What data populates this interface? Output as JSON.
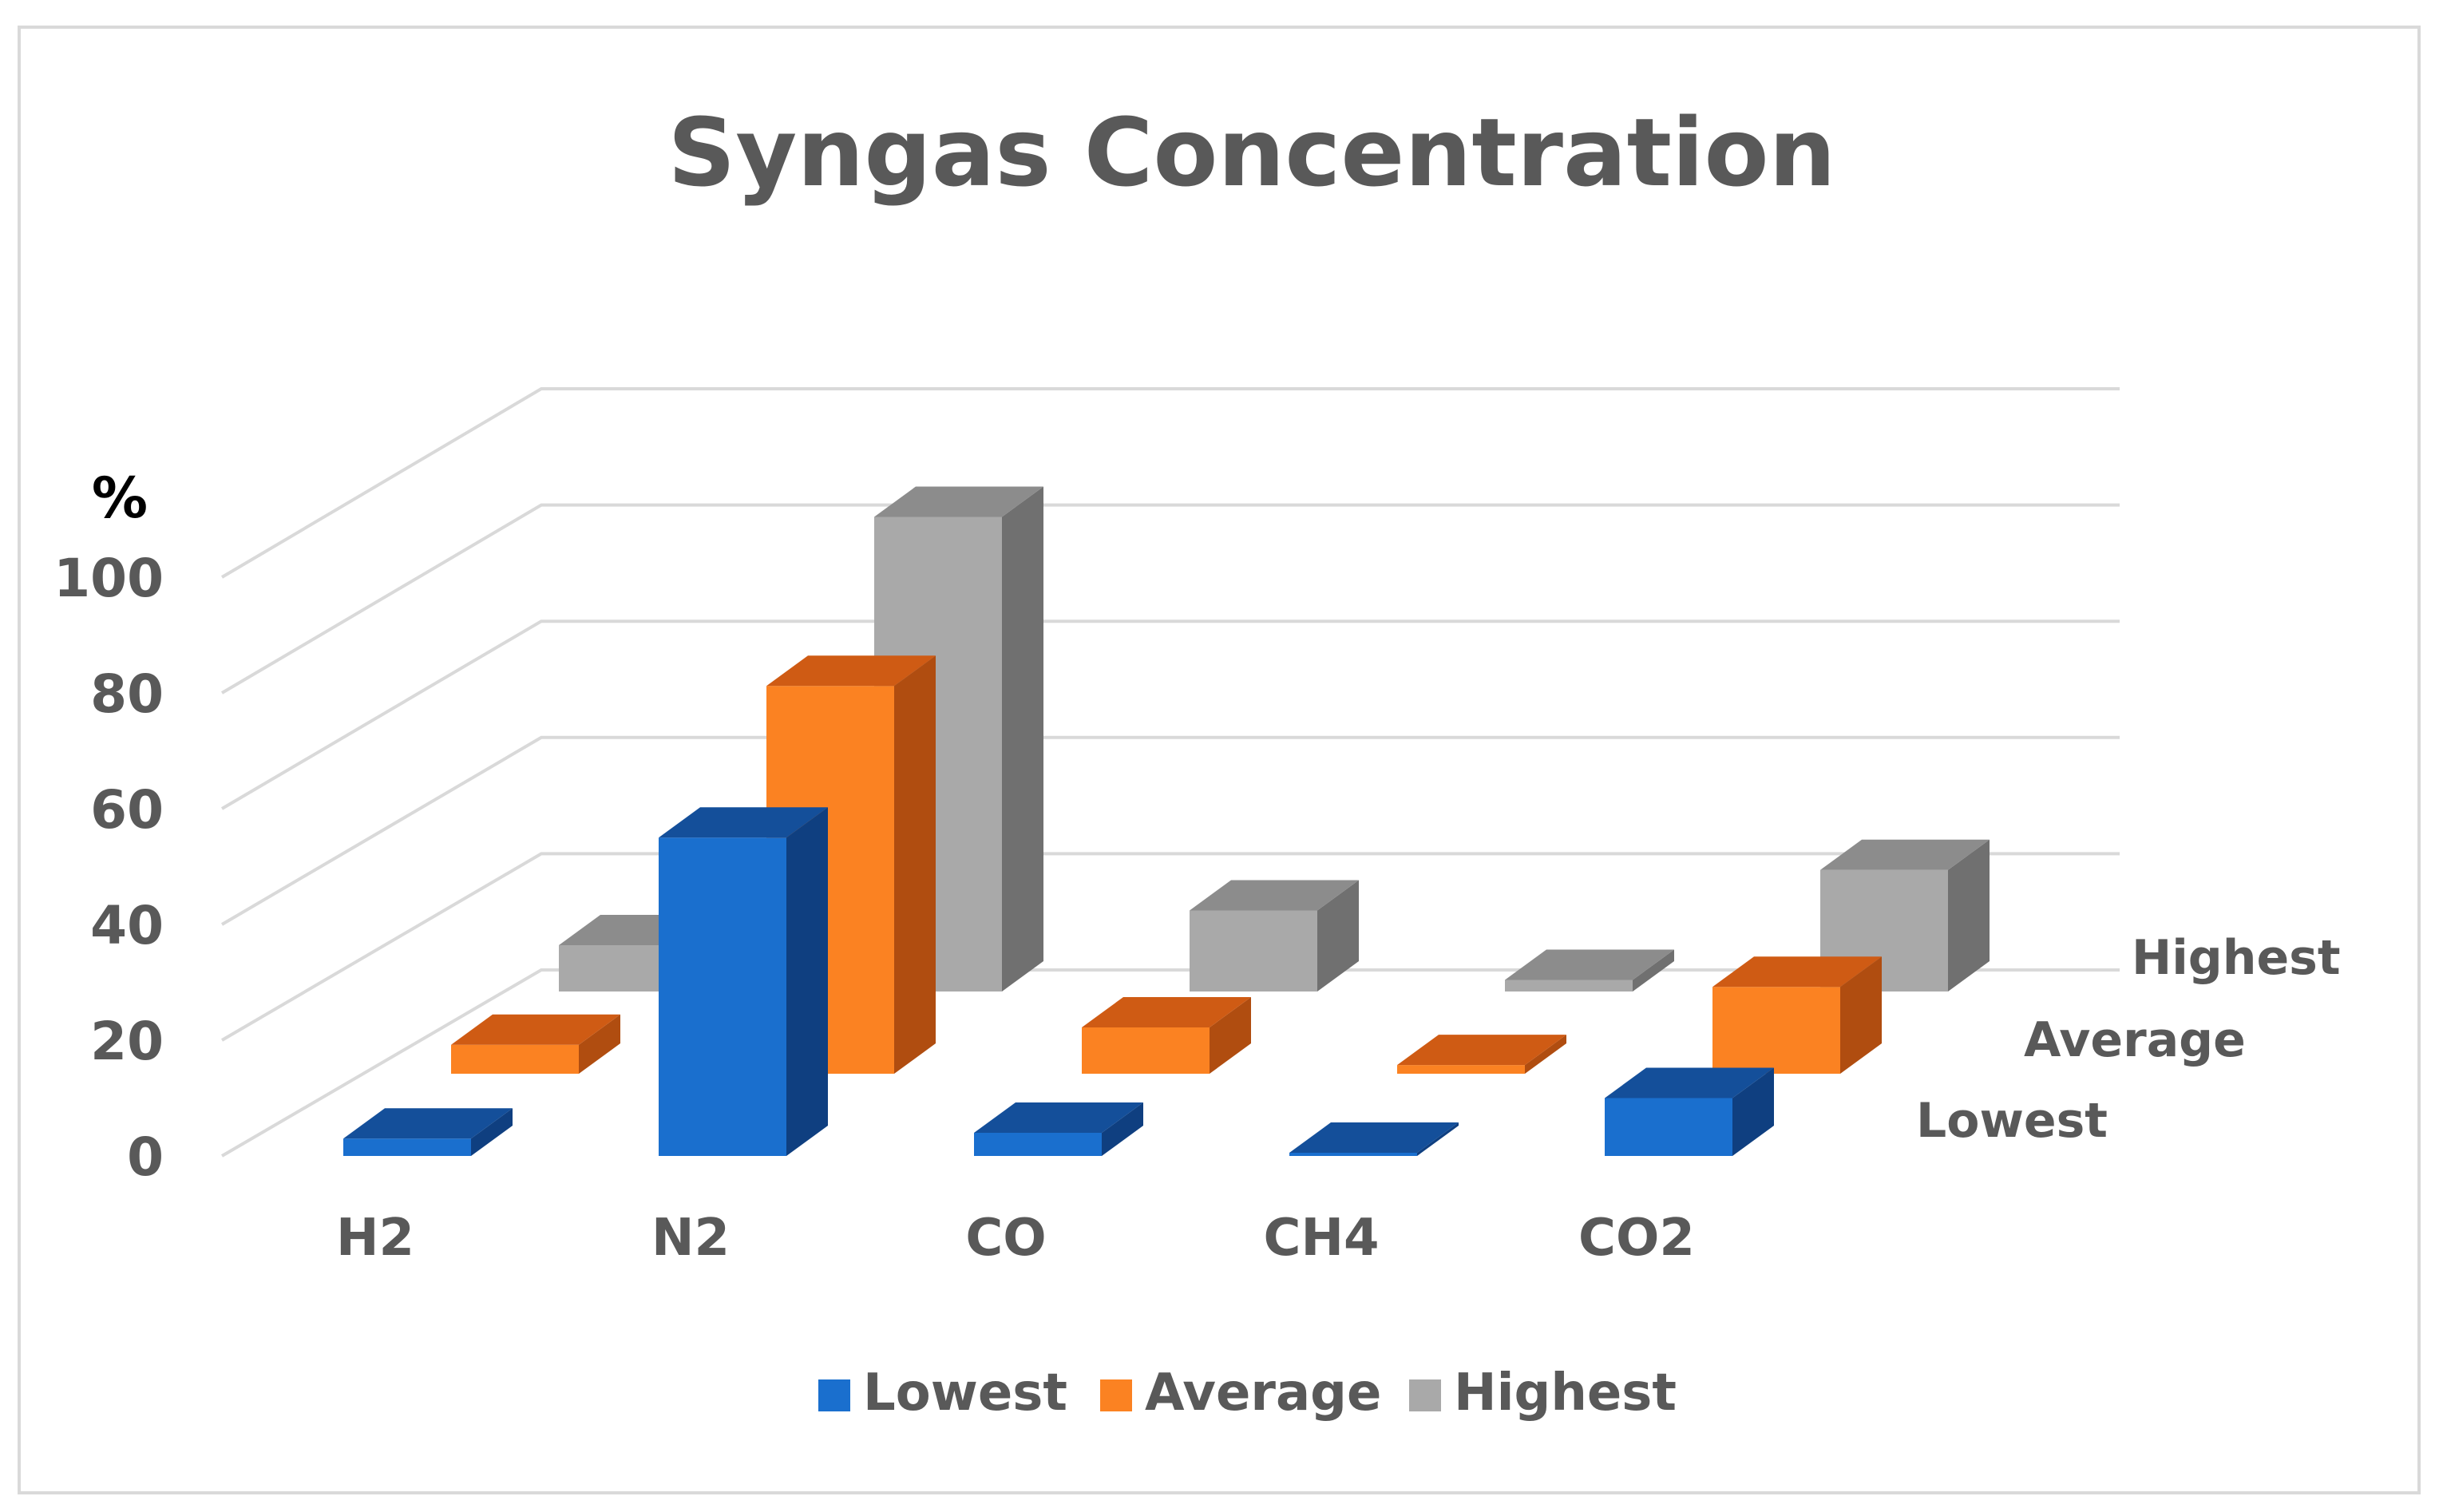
{
  "chart_data": {
    "type": "bar",
    "style": "3d-column",
    "title": "Syngas Concentration",
    "ylabel": "%",
    "xlabel": "",
    "ylim": [
      0,
      100
    ],
    "yticks": [
      0,
      20,
      40,
      60,
      80,
      100
    ],
    "grid": true,
    "legend_position": "bottom",
    "categories": [
      "H2",
      "N2",
      "CO",
      "CH4",
      "CO2"
    ],
    "series": [
      {
        "name": "Lowest",
        "values": [
          3,
          55,
          4,
          0.5,
          10
        ]
      },
      {
        "name": "Average",
        "values": [
          5,
          67,
          8,
          1.5,
          15
        ]
      },
      {
        "name": "Highest",
        "values": [
          8,
          82,
          14,
          2,
          21
        ]
      }
    ],
    "colors": {
      "Lowest": {
        "front": "#1a6fce",
        "top": "#144f9a",
        "side": "#0f3f80"
      },
      "Average": {
        "front": "#fb8222",
        "top": "#cf5b14",
        "side": "#b04d10"
      },
      "Highest": {
        "front": "#a9a9a9",
        "top": "#8c8c8c",
        "side": "#707070"
      },
      "text": "#595959",
      "grid": "#d9d9d9",
      "border": "#d9d9d9"
    }
  }
}
